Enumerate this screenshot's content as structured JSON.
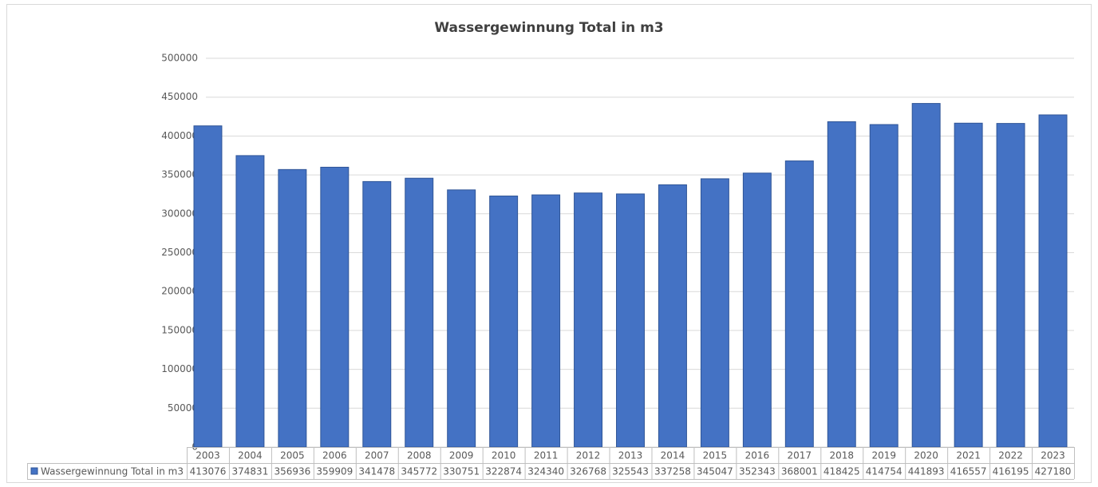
{
  "chart_data": {
    "type": "bar",
    "title": "Wassergewinnung Total in m3",
    "categories": [
      "2003",
      "2004",
      "2005",
      "2006",
      "2007",
      "2008",
      "2009",
      "2010",
      "2011",
      "2012",
      "2013",
      "2014",
      "2015",
      "2016",
      "2017",
      "2018",
      "2019",
      "2020",
      "2021",
      "2022",
      "2023"
    ],
    "series": [
      {
        "name": "Wassergewinnung Total in m3",
        "color": "#4472c4",
        "values": [
          413076,
          374831,
          356936,
          359909,
          341478,
          345772,
          330751,
          322874,
          324340,
          326768,
          325543,
          337258,
          345047,
          352343,
          368001,
          418425,
          414754,
          441893,
          416557,
          416195,
          427180
        ]
      }
    ],
    "ylim": [
      0,
      500000
    ],
    "yticks": [
      0,
      50000,
      100000,
      150000,
      200000,
      250000,
      300000,
      350000,
      400000,
      450000,
      500000
    ],
    "grid": true
  }
}
